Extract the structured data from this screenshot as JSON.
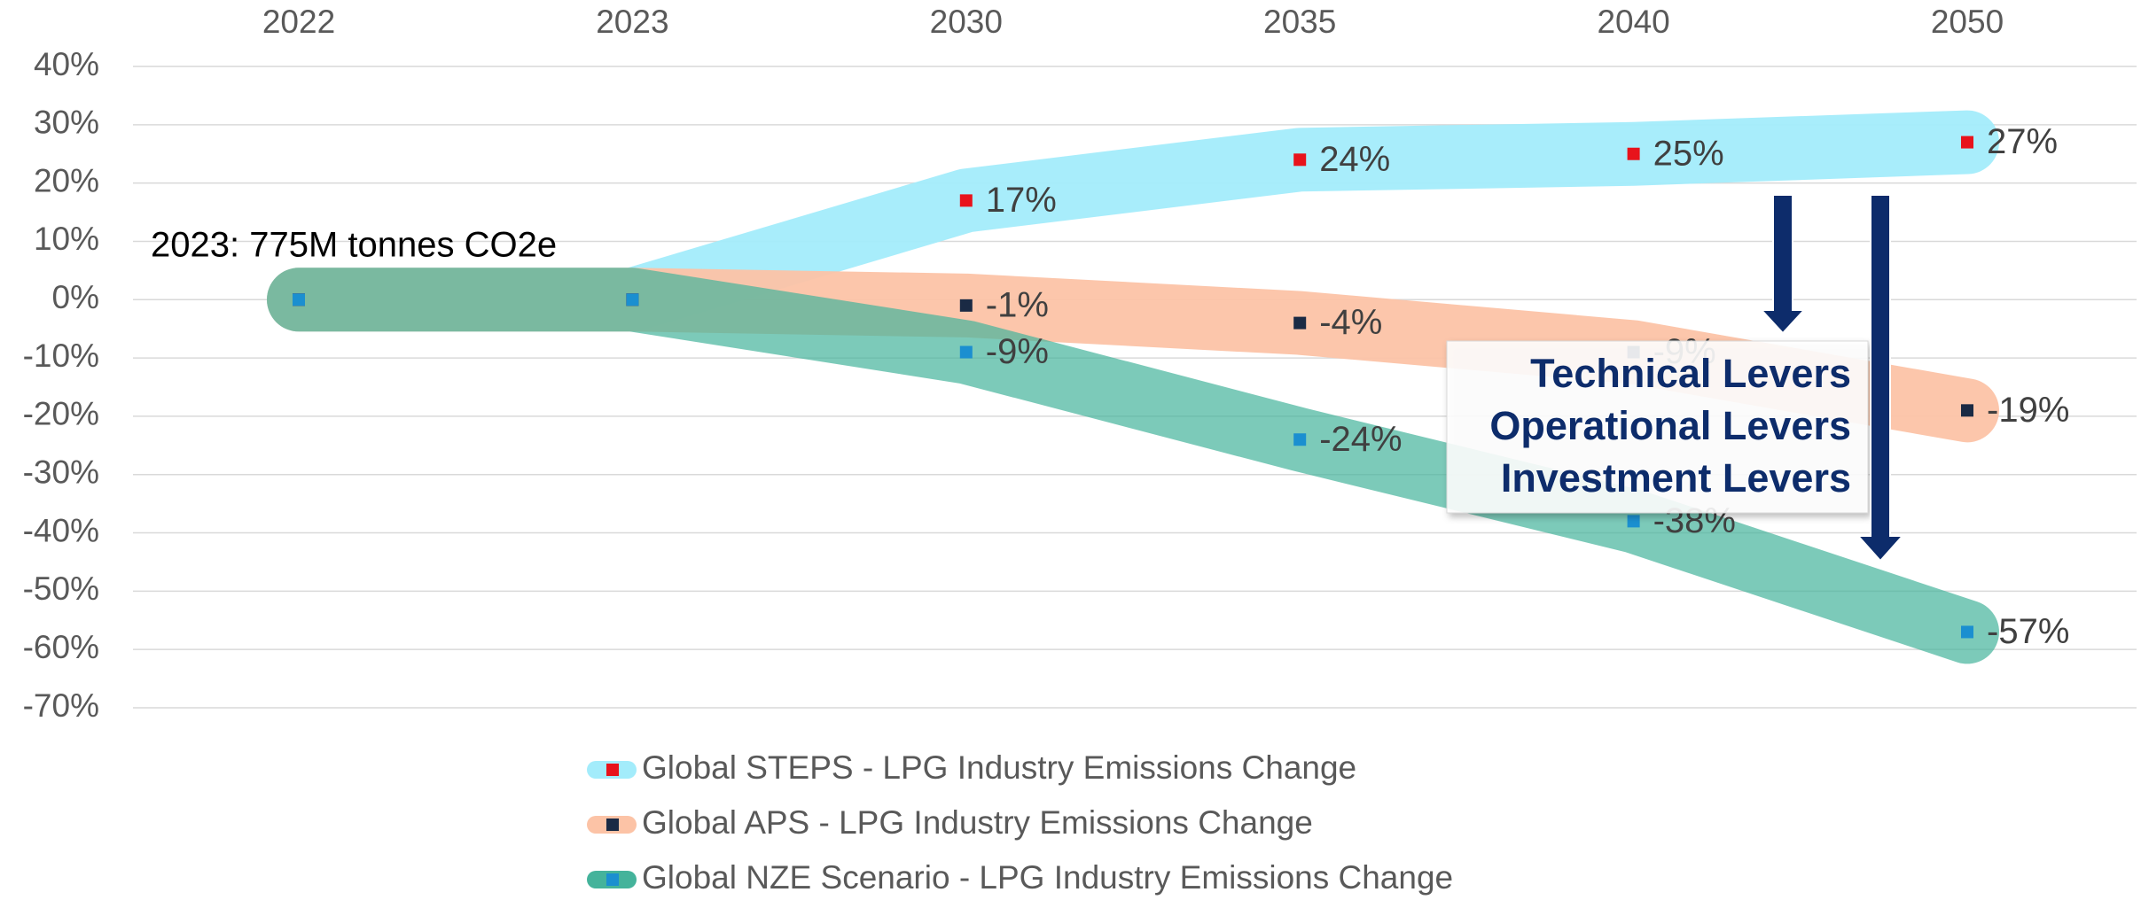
{
  "chart_data": {
    "type": "line",
    "categories": [
      "2022",
      "2023",
      "2030",
      "2035",
      "2040",
      "2050"
    ],
    "series": [
      {
        "name": "Global STEPS - LPG Industry Emissions Change",
        "color": "#a3ecfb",
        "marker_color": "#e8131b",
        "values": [
          0,
          0,
          17,
          24,
          25,
          27
        ],
        "value_labels": [
          null,
          null,
          "17%",
          "24%",
          "25%",
          "27%"
        ]
      },
      {
        "name": "Global APS - LPG Industry Emissions Change",
        "color": "#fcc3a6",
        "marker_color": "#1a2a44",
        "values": [
          0,
          0,
          -1,
          -4,
          -9,
          -19
        ],
        "value_labels": [
          null,
          null,
          "-1%",
          "-4%",
          "-9%",
          "-19%"
        ]
      },
      {
        "name": "Global NZE Scenario - LPG Industry Emissions Change",
        "color": "#44b39b",
        "marker_color": "#1b8fd0",
        "values": [
          0,
          0,
          -9,
          -24,
          -38,
          -57
        ],
        "value_labels": [
          null,
          null,
          "-9%",
          "-24%",
          "-38%",
          "-57%"
        ]
      }
    ],
    "ylim": [
      -70,
      40
    ],
    "yticks": [
      {
        "value": 40,
        "label": "40%"
      },
      {
        "value": 30,
        "label": "30%"
      },
      {
        "value": 20,
        "label": "20%"
      },
      {
        "value": 10,
        "label": "10%"
      },
      {
        "value": 0,
        "label": "0%"
      },
      {
        "value": -10,
        "label": "-10%"
      },
      {
        "value": -20,
        "label": "-20%"
      },
      {
        "value": -30,
        "label": "-30%"
      },
      {
        "value": -40,
        "label": "-40%"
      },
      {
        "value": -50,
        "label": "-50%"
      },
      {
        "value": -60,
        "label": "-60%"
      },
      {
        "value": -70,
        "label": "-70%"
      }
    ],
    "grid": true,
    "legend": "bottom",
    "annotation": "2023: 775M tonnes CO2e",
    "callout": [
      "Technical Levers",
      "Operational Levers",
      "Investment Levers"
    ]
  }
}
